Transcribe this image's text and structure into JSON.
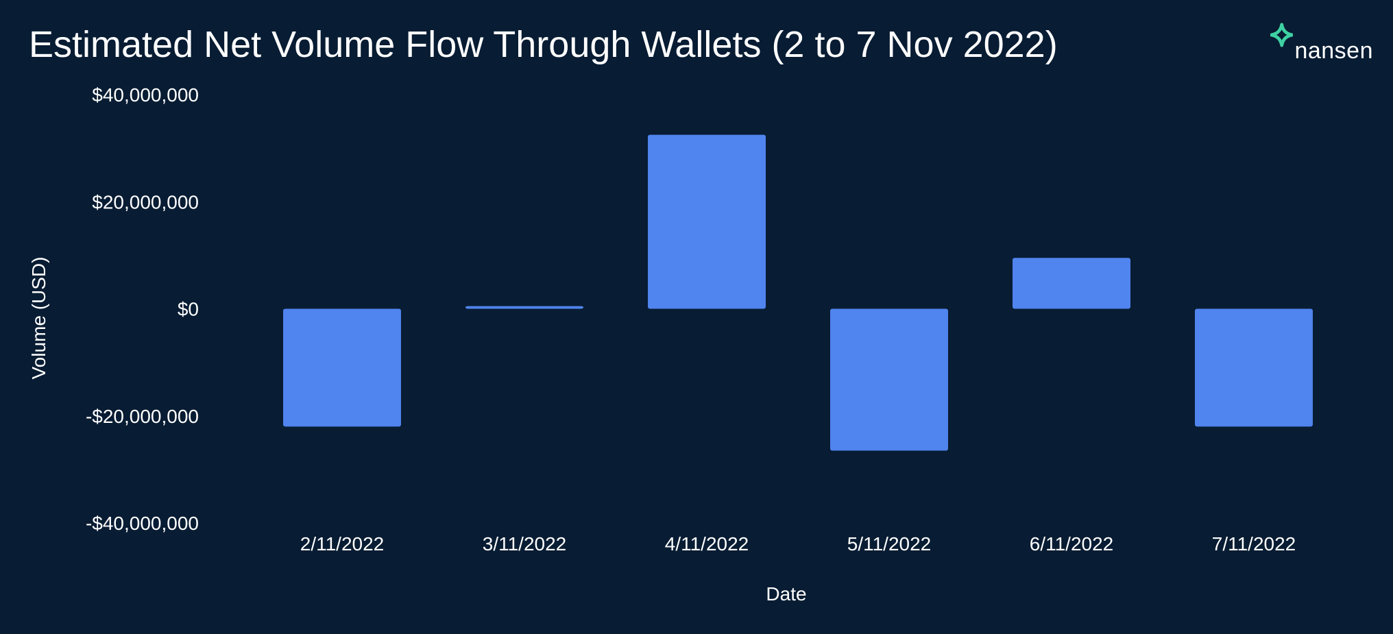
{
  "brand": {
    "name": "nansen",
    "mark_color": "#3fd1a4"
  },
  "colors": {
    "background": "#081c33",
    "bar": "#5084ee",
    "text": "#ffffff"
  },
  "chart_data": {
    "type": "bar",
    "title": "Estimated Net Volume Flow Through Wallets (2 to 7 Nov 2022)",
    "xlabel": "Date",
    "ylabel": "Volume (USD)",
    "categories": [
      "2/11/2022",
      "3/11/2022",
      "4/11/2022",
      "5/11/2022",
      "6/11/2022",
      "7/11/2022"
    ],
    "values": [
      -22000000,
      500000,
      32500000,
      -26500000,
      9500000,
      -22000000
    ],
    "ylim": [
      -40000000,
      40000000
    ],
    "yticks": [
      40000000,
      20000000,
      0,
      -20000000,
      -40000000
    ],
    "ytick_labels": [
      "$40,000,000",
      "$20,000,000",
      "$0",
      "-$20,000,000",
      "-$40,000,000"
    ],
    "grid": false,
    "legend": "none"
  }
}
